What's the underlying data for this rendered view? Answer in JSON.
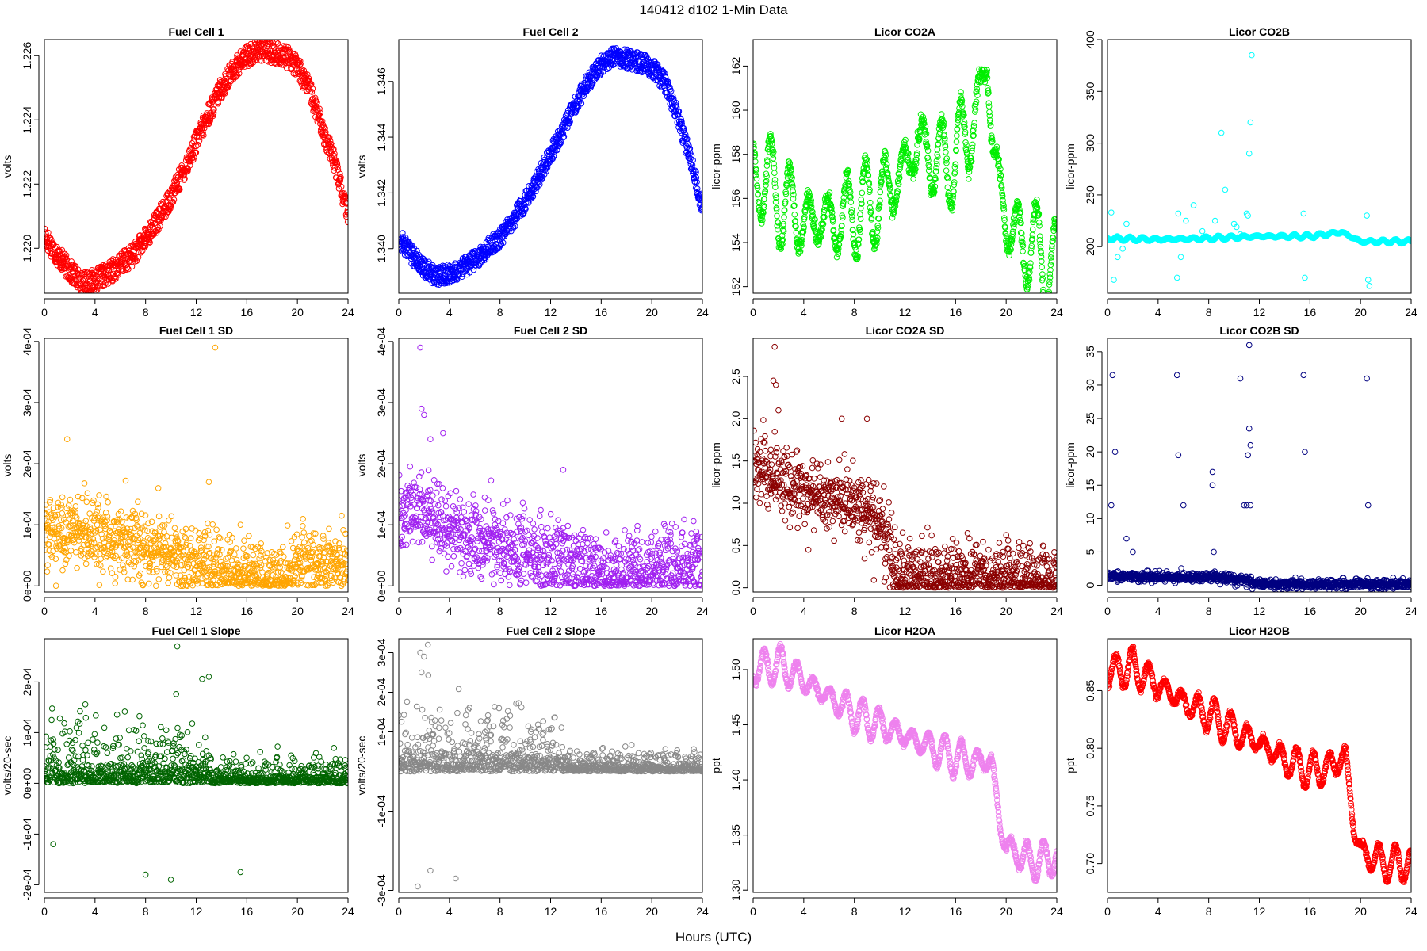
{
  "figure": {
    "title": "140412   d102   1-Min Data",
    "xlabel": "Hours (UTC)"
  },
  "chart_data": [
    {
      "type": "scatter",
      "title": "Fuel Cell 1",
      "ylabel": "volts",
      "xlim": [
        0,
        24
      ],
      "xticks": [
        0,
        4,
        8,
        12,
        16,
        20,
        24
      ],
      "ylim": [
        1.2186,
        1.2265
      ],
      "yticks": [
        1.22,
        1.222,
        1.224,
        1.226
      ],
      "ytick_labels": [
        "1.220",
        "1.222",
        "1.224",
        "1.226"
      ],
      "color": "#ff0000",
      "series": [
        {
          "shape": "curve",
          "x": [
            0,
            1,
            2,
            3,
            4,
            5,
            6,
            7,
            8,
            9,
            10,
            11,
            12,
            13,
            14,
            15,
            16,
            17,
            18,
            19,
            20,
            21,
            22,
            23,
            24
          ],
          "y": [
            1.2204,
            1.2198,
            1.2193,
            1.2189,
            1.219,
            1.2192,
            1.2195,
            1.2198,
            1.2203,
            1.2209,
            1.2216,
            1.2224,
            1.2233,
            1.2242,
            1.225,
            1.2256,
            1.226,
            1.2262,
            1.2261,
            1.226,
            1.2257,
            1.2249,
            1.2237,
            1.2226,
            1.221
          ],
          "jitter": 0.00035,
          "points": 1100
        }
      ]
    },
    {
      "type": "scatter",
      "title": "Fuel Cell 2",
      "ylabel": "volts",
      "xlim": [
        0,
        24
      ],
      "xticks": [
        0,
        4,
        8,
        12,
        16,
        20,
        24
      ],
      "ylim": [
        1.3384,
        1.3475
      ],
      "yticks": [
        1.34,
        1.342,
        1.344,
        1.346
      ],
      "ytick_labels": [
        "1.340",
        "1.342",
        "1.344",
        "1.346"
      ],
      "color": "#0000ff",
      "series": [
        {
          "shape": "curve",
          "x": [
            0,
            1,
            2,
            3,
            4,
            5,
            6,
            7,
            8,
            9,
            10,
            11,
            12,
            13,
            14,
            15,
            16,
            17,
            18,
            19,
            20,
            21,
            22,
            23,
            24
          ],
          "y": [
            1.3404,
            1.3398,
            1.3393,
            1.339,
            1.3391,
            1.3393,
            1.3396,
            1.34,
            1.3404,
            1.341,
            1.3417,
            1.3425,
            1.3434,
            1.3443,
            1.3452,
            1.346,
            1.3466,
            1.3469,
            1.3468,
            1.3467,
            1.3465,
            1.346,
            1.3448,
            1.3433,
            1.3415
          ],
          "jitter": 0.00035,
          "points": 1100
        }
      ]
    },
    {
      "type": "scatter",
      "title": "Licor CO2A",
      "ylabel": "licor-ppm",
      "xlim": [
        0,
        24
      ],
      "xticks": [
        0,
        4,
        8,
        12,
        16,
        20,
        24
      ],
      "ylim": [
        151.7,
        163.2
      ],
      "yticks": [
        152,
        154,
        156,
        158,
        160,
        162
      ],
      "ytick_labels": [
        "152",
        "154",
        "156",
        "158",
        "160",
        "162"
      ],
      "color": "#00ee00",
      "series": [
        {
          "shape": "curve",
          "x": [
            0,
            1,
            2,
            3,
            4,
            5,
            6,
            7,
            8,
            9,
            10,
            11,
            12,
            13,
            14,
            15,
            16,
            17,
            18,
            18.5,
            19,
            20,
            21,
            22,
            23,
            24
          ],
          "y": [
            157,
            157,
            156,
            155.5,
            155,
            155,
            155,
            155,
            155.5,
            155.5,
            156,
            156.5,
            157.5,
            158.5,
            158,
            157.5,
            158,
            159,
            160.5,
            162.5,
            158,
            155,
            154,
            154,
            153,
            153
          ],
          "wave_amp": 2.2,
          "wave_period": 1.5,
          "points": 1100
        }
      ]
    },
    {
      "type": "scatter",
      "title": "Licor CO2B",
      "ylabel": "licor-ppm",
      "xlim": [
        0,
        24
      ],
      "xticks": [
        0,
        4,
        8,
        12,
        16,
        20,
        24
      ],
      "ylim": [
        155,
        400
      ],
      "yticks": [
        200,
        250,
        300,
        350,
        400
      ],
      "ytick_labels": [
        "200",
        "250",
        "300",
        "350",
        "400"
      ],
      "color": "#00ffff",
      "series": [
        {
          "shape": "curve",
          "x": [
            0,
            4,
            8,
            12,
            16,
            18.5,
            20,
            24
          ],
          "y": [
            208,
            207,
            208,
            210,
            210,
            214,
            205,
            205
          ],
          "wave_amp": 2,
          "wave_period": 1,
          "points": 1100
        },
        {
          "shape": "outliers",
          "x": [
            0.3,
            0.5,
            0.8,
            1.2,
            1.5,
            5.5,
            5.6,
            5.8,
            6.2,
            6.8,
            7.5,
            8.5,
            9,
            9.3,
            10,
            10.2,
            10.5,
            11,
            11.1,
            11.2,
            11.3,
            11.4,
            15.5,
            15.6,
            20.5,
            20.6,
            20.7
          ],
          "y": [
            233,
            168,
            190,
            198,
            222,
            170,
            232,
            190,
            225,
            240,
            215,
            225,
            310,
            255,
            222,
            219,
            212,
            232,
            230,
            290,
            320,
            385,
            232,
            170,
            230,
            168,
            162
          ]
        }
      ]
    },
    {
      "type": "scatter",
      "title": "Fuel Cell 1 SD",
      "ylabel": "volts",
      "xlim": [
        0,
        24
      ],
      "xticks": [
        0,
        4,
        8,
        12,
        16,
        20,
        24
      ],
      "ylim": [
        -1e-05,
        0.000405
      ],
      "yticks": [
        0,
        0.0001,
        0.0002,
        0.0003,
        0.0004
      ],
      "ytick_labels": [
        "0e+00",
        "1e-04",
        "2e-04",
        "3e-04",
        "4e-04"
      ],
      "color": "#ffa500",
      "series": [
        {
          "shape": "band",
          "x": [
            0,
            2,
            4,
            6,
            8,
            10,
            12,
            14,
            16,
            18,
            19.5,
            20,
            22,
            24
          ],
          "y": [
            8e-05,
            9e-05,
            8e-05,
            7e-05,
            6e-05,
            5e-05,
            4e-05,
            2.5e-05,
            1.5e-05,
            1.5e-05,
            2e-05,
            4e-05,
            3.5e-05,
            4e-05
          ],
          "jitter": 3.5e-05,
          "points": 1100
        },
        {
          "shape": "outliers",
          "x": [
            1.8,
            13.5,
            13,
            9,
            15.5
          ],
          "y": [
            0.00024,
            0.00039,
            0.00017,
            0.00016,
            0.0001
          ]
        }
      ]
    },
    {
      "type": "scatter",
      "title": "Fuel Cell 2 SD",
      "ylabel": "volts",
      "xlim": [
        0,
        24
      ],
      "xticks": [
        0,
        4,
        8,
        12,
        16,
        20,
        24
      ],
      "ylim": [
        -1e-05,
        0.000405
      ],
      "yticks": [
        0,
        0.0001,
        0.0002,
        0.0003,
        0.0004
      ],
      "ytick_labels": [
        "0e+00",
        "1e-04",
        "2e-04",
        "3e-04",
        "4e-04"
      ],
      "color": "#a020f0",
      "series": [
        {
          "shape": "band",
          "x": [
            0,
            2,
            4,
            6,
            8,
            10,
            12,
            14,
            16,
            18,
            20,
            22,
            24
          ],
          "y": [
            0.00011,
            0.00012,
            0.0001,
            8e-05,
            7e-05,
            6e-05,
            4e-05,
            3e-05,
            2e-05,
            2e-05,
            3e-05,
            3e-05,
            3e-05
          ],
          "jitter": 4e-05,
          "points": 1100
        },
        {
          "shape": "outliers",
          "x": [
            1.7,
            1.8,
            2,
            2.5,
            3.5,
            13
          ],
          "y": [
            0.00039,
            0.00029,
            0.00028,
            0.00024,
            0.00025,
            0.00019
          ]
        }
      ]
    },
    {
      "type": "scatter",
      "title": "Licor CO2A SD",
      "ylabel": "licor-ppm",
      "xlim": [
        0,
        24
      ],
      "xticks": [
        0,
        4,
        8,
        12,
        16,
        20,
        24
      ],
      "ylim": [
        -0.05,
        2.95
      ],
      "yticks": [
        0,
        0.5,
        1,
        1.5,
        2,
        2.5
      ],
      "ytick_labels": [
        "0.0",
        "0.5",
        "1.0",
        "1.5",
        "2.0",
        "2.5"
      ],
      "color": "#8b0000",
      "series": [
        {
          "shape": "band",
          "x": [
            0,
            1,
            2,
            4,
            6,
            8,
            10,
            10.8,
            11.3,
            12,
            16,
            20,
            24
          ],
          "y": [
            1.4,
            1.35,
            1.3,
            1.1,
            1.05,
            1.0,
            0.8,
            0.5,
            0.15,
            0.15,
            0.15,
            0.15,
            0.12
          ],
          "jitter": 0.25,
          "points": 1100
        },
        {
          "shape": "outliers",
          "x": [
            1.7,
            1.6,
            1.8,
            2,
            7,
            9
          ],
          "y": [
            2.85,
            2.45,
            2.4,
            2.1,
            2.0,
            2.0
          ]
        }
      ]
    },
    {
      "type": "scatter",
      "title": "Licor CO2B SD",
      "ylabel": "licor-ppm",
      "xlim": [
        0,
        24
      ],
      "xticks": [
        0,
        4,
        8,
        12,
        16,
        20,
        24
      ],
      "ylim": [
        -1,
        37
      ],
      "yticks": [
        0,
        5,
        10,
        15,
        20,
        25,
        30,
        35
      ],
      "ytick_labels": [
        "0",
        "5",
        "10",
        "15",
        "20",
        "25",
        "30",
        "35"
      ],
      "color": "#000080",
      "series": [
        {
          "shape": "band",
          "x": [
            0,
            4,
            8,
            10,
            11.3,
            11.5,
            24
          ],
          "y": [
            1.3,
            1.2,
            1.2,
            1.0,
            0.8,
            0.2,
            0.2
          ],
          "jitter": 0.4,
          "points": 1100
        },
        {
          "shape": "outliers",
          "x": [
            0.4,
            0.6,
            0.3,
            1.5,
            2,
            5.5,
            5.6,
            6,
            8.3,
            8.3,
            8.4,
            10.5,
            10.8,
            11,
            11.1,
            11.2,
            11.2,
            11.3,
            11.3,
            15.5,
            15.6,
            20.5,
            20.6
          ],
          "y": [
            31.5,
            20,
            12,
            7,
            5,
            31.5,
            19.5,
            12,
            17,
            15,
            5,
            31,
            12,
            12,
            19.5,
            36,
            23.5,
            21,
            12,
            31.5,
            20,
            31,
            12
          ]
        }
      ]
    },
    {
      "type": "scatter",
      "title": "Fuel Cell 1 Slope",
      "ylabel": "volts/20-sec",
      "xlim": [
        0,
        24
      ],
      "xticks": [
        0,
        4,
        8,
        12,
        16,
        20,
        24
      ],
      "ylim": [
        -0.000215,
        0.000285
      ],
      "yticks": [
        -0.0002,
        -0.0001,
        0,
        0.0001,
        0.0002
      ],
      "ytick_labels": [
        "-2e-04",
        "-1e-04",
        "0e+00",
        "1e-04",
        "2e-04"
      ],
      "color": "#006400",
      "series": [
        {
          "shape": "band",
          "x": [
            0,
            4,
            8,
            12,
            13,
            16,
            20,
            24
          ],
          "y": [
            0,
            0,
            0,
            0,
            0,
            0,
            0,
            0
          ],
          "jitter": 7.5e-05,
          "jitter_late": 3e-05,
          "late_after": 13,
          "points": 1100
        },
        {
          "shape": "outliers",
          "x": [
            10.5,
            13,
            8,
            10,
            15.5,
            0.7
          ],
          "y": [
            0.00027,
            0.00021,
            -0.00018,
            -0.00019,
            -0.000175,
            -0.00012
          ]
        }
      ]
    },
    {
      "type": "scatter",
      "title": "Fuel Cell 2 Slope",
      "ylabel": "volts/20-sec",
      "xlim": [
        0,
        24
      ],
      "xticks": [
        0,
        4,
        8,
        12,
        16,
        20,
        24
      ],
      "ylim": [
        -0.000305,
        0.000335
      ],
      "yticks": [
        -0.0003,
        -0.0001,
        0.0001,
        0.0002,
        0.0003
      ],
      "ytick_labels": [
        "-3e-04",
        "-1e-04",
        "1e-04",
        "2e-04",
        "3e-04"
      ],
      "color": "#888888",
      "series": [
        {
          "shape": "band",
          "x": [
            0,
            4,
            8,
            12,
            13,
            16,
            20,
            24
          ],
          "y": [
            0,
            0,
            0,
            0,
            0,
            0,
            0,
            0
          ],
          "jitter": 9e-05,
          "jitter_late": 3e-05,
          "late_after": 13,
          "points": 1100
        },
        {
          "shape": "outliers",
          "x": [
            2.3,
            1.7,
            2,
            1.8,
            4.5,
            1.5,
            2.5
          ],
          "y": [
            0.00032,
            0.0003,
            0.00029,
            0.00025,
            -0.00027,
            -0.00029,
            -0.00025
          ]
        }
      ]
    },
    {
      "type": "scatter",
      "title": "Licor H2OA",
      "ylabel": "ppt",
      "xlim": [
        0,
        24
      ],
      "xticks": [
        0,
        4,
        8,
        12,
        16,
        20,
        24
      ],
      "ylim": [
        1.298,
        1.528
      ],
      "yticks": [
        1.3,
        1.35,
        1.4,
        1.45,
        1.5
      ],
      "ytick_labels": [
        "1.30",
        "1.35",
        "1.40",
        "1.45",
        "1.50"
      ],
      "color": "#ee82ee",
      "series": [
        {
          "shape": "curve",
          "x": [
            0,
            2,
            4,
            6,
            8,
            10,
            12,
            14,
            16,
            18,
            18.8,
            19.5,
            20,
            22,
            24
          ],
          "y": [
            1.5,
            1.505,
            1.49,
            1.475,
            1.46,
            1.45,
            1.44,
            1.43,
            1.42,
            1.415,
            1.42,
            1.36,
            1.34,
            1.325,
            1.33
          ],
          "wave_amp": 0.017,
          "wave_period": 1.3,
          "points": 1100
        }
      ]
    },
    {
      "type": "scatter",
      "title": "Licor H2OB",
      "ylabel": "ppt",
      "xlim": [
        0,
        24
      ],
      "xticks": [
        0,
        4,
        8,
        12,
        16,
        20,
        24
      ],
      "ylim": [
        0.675,
        0.895
      ],
      "yticks": [
        0.7,
        0.75,
        0.8,
        0.85
      ],
      "ytick_labels": [
        "0.70",
        "0.75",
        "0.80",
        "0.85"
      ],
      "color": "#ff0000",
      "series": [
        {
          "shape": "curve",
          "x": [
            0,
            2,
            4,
            6,
            8,
            10,
            12,
            14,
            16,
            18,
            18.8,
            19.5,
            20,
            22,
            24
          ],
          "y": [
            0.866,
            0.87,
            0.855,
            0.84,
            0.83,
            0.815,
            0.805,
            0.79,
            0.78,
            0.785,
            0.795,
            0.73,
            0.71,
            0.7,
            0.7
          ],
          "wave_amp": 0.016,
          "wave_period": 1.3,
          "points": 1100
        }
      ]
    }
  ]
}
